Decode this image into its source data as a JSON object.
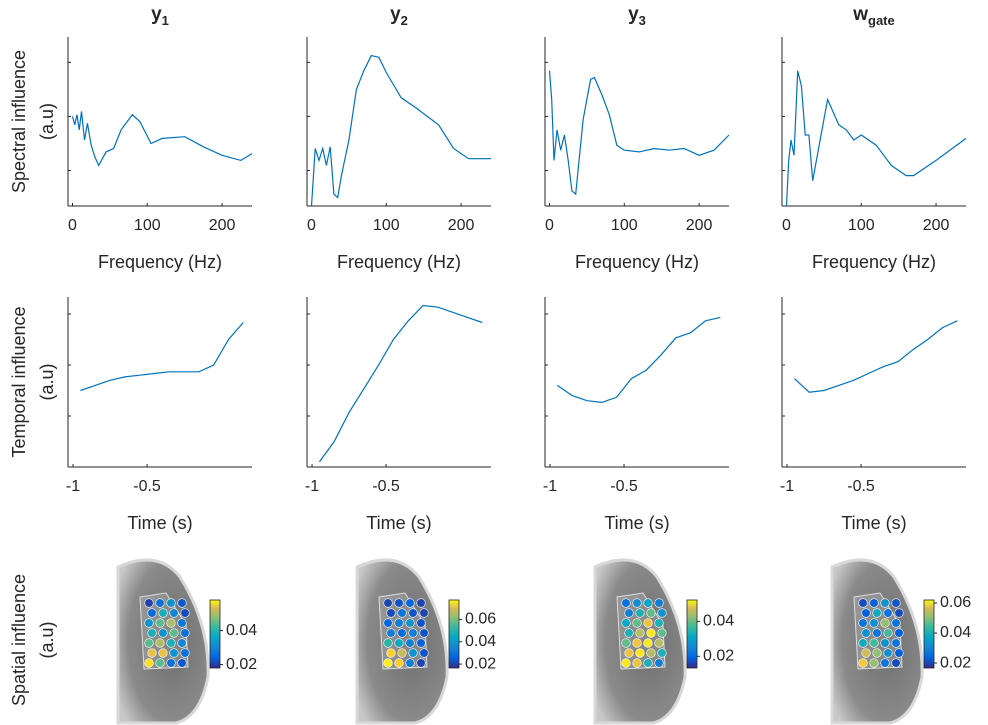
{
  "chart_data": [
    {
      "type": "line",
      "title": {
        "base": "y",
        "subscript": "1"
      },
      "ylabel": [
        "Spectral influence",
        "(a.u)"
      ],
      "xlabel": "Frequency (Hz)",
      "color": "#0072bd",
      "x": [
        0,
        3,
        6,
        9,
        12,
        16,
        20,
        25,
        30,
        35,
        45,
        55,
        65,
        80,
        90,
        105,
        120,
        150,
        175,
        200,
        225,
        240
      ],
      "values": [
        0.53,
        0.48,
        0.54,
        0.45,
        0.56,
        0.39,
        0.49,
        0.36,
        0.29,
        0.24,
        0.32,
        0.34,
        0.45,
        0.54,
        0.5,
        0.37,
        0.4,
        0.41,
        0.35,
        0.3,
        0.27,
        0.31
      ],
      "xlim": [
        -6,
        240
      ],
      "xticks": [
        0,
        100,
        200
      ],
      "ylim": [
        0,
        1
      ],
      "yticks": [
        0.21,
        0.53,
        0.85
      ]
    },
    {
      "type": "line",
      "title": {
        "base": "y",
        "subscript": "2"
      },
      "xlabel": "Frequency (Hz)",
      "color": "#0072bd",
      "x": [
        0,
        5,
        10,
        15,
        20,
        25,
        30,
        35,
        40,
        50,
        60,
        70,
        80,
        90,
        100,
        120,
        140,
        170,
        190,
        210,
        240
      ],
      "values": [
        0.0,
        0.34,
        0.27,
        0.34,
        0.24,
        0.35,
        0.07,
        0.05,
        0.18,
        0.39,
        0.69,
        0.8,
        0.89,
        0.88,
        0.79,
        0.64,
        0.58,
        0.48,
        0.34,
        0.28,
        0.28
      ],
      "xlim": [
        -6,
        240
      ],
      "xticks": [
        0,
        100,
        200
      ],
      "ylim": [
        0,
        1
      ],
      "yticks": [
        0.21,
        0.53,
        0.85
      ]
    },
    {
      "type": "line",
      "title": {
        "base": "y",
        "subscript": "3"
      },
      "xlabel": "Frequency (Hz)",
      "color": "#0072bd",
      "x": [
        0,
        3,
        6,
        10,
        15,
        20,
        25,
        30,
        35,
        45,
        55,
        60,
        70,
        80,
        90,
        100,
        120,
        140,
        160,
        180,
        200,
        220,
        240
      ],
      "values": [
        0.8,
        0.63,
        0.27,
        0.45,
        0.33,
        0.42,
        0.27,
        0.09,
        0.07,
        0.51,
        0.75,
        0.76,
        0.66,
        0.54,
        0.36,
        0.33,
        0.32,
        0.34,
        0.33,
        0.34,
        0.3,
        0.33,
        0.42
      ],
      "xlim": [
        -6,
        240
      ],
      "xticks": [
        0,
        100,
        200
      ],
      "ylim": [
        0,
        1
      ],
      "yticks": [
        0.21,
        0.53,
        0.85
      ]
    },
    {
      "type": "line",
      "title": {
        "base": "w",
        "subscript": "gate"
      },
      "xlabel": "Frequency (Hz)",
      "color": "#0072bd",
      "x": [
        0,
        3,
        6,
        10,
        15,
        20,
        25,
        30,
        35,
        45,
        55,
        70,
        80,
        90,
        100,
        120,
        140,
        160,
        170,
        180,
        200,
        240
      ],
      "values": [
        0.0,
        0.27,
        0.39,
        0.3,
        0.8,
        0.71,
        0.42,
        0.42,
        0.15,
        0.39,
        0.63,
        0.48,
        0.45,
        0.39,
        0.42,
        0.36,
        0.24,
        0.18,
        0.18,
        0.21,
        0.27,
        0.4
      ],
      "xlim": [
        -6,
        240
      ],
      "xticks": [
        0,
        100,
        200
      ],
      "ylim": [
        0,
        1
      ],
      "yticks": [
        0.21,
        0.53,
        0.85
      ]
    },
    {
      "type": "line",
      "ylabel": [
        "Temporal influence",
        "(a.u)"
      ],
      "xlabel": "Time (s)",
      "color": "#0072bd",
      "x": [
        -0.95,
        -0.85,
        -0.75,
        -0.65,
        -0.55,
        -0.45,
        -0.35,
        -0.25,
        -0.15,
        -0.05,
        0.05,
        0.15
      ],
      "values": [
        0.45,
        0.48,
        0.51,
        0.53,
        0.54,
        0.55,
        0.56,
        0.56,
        0.56,
        0.6,
        0.75,
        0.85
      ],
      "xlim": [
        -1.034,
        0.209
      ],
      "xticks": [
        -1,
        -0.5
      ],
      "ylim": [
        0,
        1
      ],
      "yticks": [
        0.3,
        0.6,
        0.9
      ]
    },
    {
      "type": "line",
      "xlabel": "Time (s)",
      "color": "#0072bd",
      "x": [
        -0.95,
        -0.85,
        -0.75,
        -0.65,
        -0.55,
        -0.45,
        -0.35,
        -0.25,
        -0.15,
        -0.05,
        0.05,
        0.15
      ],
      "values": [
        0.03,
        0.15,
        0.32,
        0.46,
        0.6,
        0.75,
        0.86,
        0.95,
        0.94,
        0.91,
        0.88,
        0.85
      ],
      "xlim": [
        -1.034,
        0.209
      ],
      "xticks": [
        -1,
        -0.5
      ],
      "ylim": [
        0,
        1
      ],
      "yticks": [
        0.3,
        0.6,
        0.9
      ]
    },
    {
      "type": "line",
      "xlabel": "Time (s)",
      "color": "#0072bd",
      "x": [
        -0.95,
        -0.85,
        -0.75,
        -0.65,
        -0.55,
        -0.45,
        -0.35,
        -0.25,
        -0.15,
        -0.05,
        0.05,
        0.15
      ],
      "values": [
        0.48,
        0.42,
        0.39,
        0.38,
        0.41,
        0.52,
        0.57,
        0.66,
        0.76,
        0.79,
        0.86,
        0.88
      ],
      "xlim": [
        -1.034,
        0.209
      ],
      "xticks": [
        -1,
        -0.5
      ],
      "ylim": [
        0,
        1
      ],
      "yticks": [
        0.3,
        0.6,
        0.9
      ]
    },
    {
      "type": "line",
      "xlabel": "Time (s)",
      "color": "#0072bd",
      "x": [
        -0.95,
        -0.85,
        -0.75,
        -0.65,
        -0.55,
        -0.45,
        -0.35,
        -0.25,
        -0.15,
        -0.05,
        0.05,
        0.15
      ],
      "values": [
        0.52,
        0.44,
        0.45,
        0.48,
        0.51,
        0.55,
        0.59,
        0.62,
        0.69,
        0.75,
        0.82,
        0.86
      ],
      "xlim": [
        -1.034,
        0.209
      ],
      "xticks": [
        -1,
        -0.5
      ],
      "ylim": [
        0,
        1
      ],
      "yticks": [
        0.3,
        0.6,
        0.9
      ]
    },
    {
      "type": "electrode_map",
      "ylabel": [
        "Spatial influence",
        "(a.u)"
      ],
      "values": [
        0.02,
        0.025,
        0.03,
        0.022,
        0.024,
        0.035,
        0.028,
        0.021,
        0.03,
        0.04,
        0.045,
        0.026,
        0.035,
        0.03,
        0.04,
        0.025,
        0.04,
        0.045,
        0.035,
        0.028,
        0.05,
        0.05,
        0.03,
        0.025,
        0.055,
        0.04,
        0.025,
        0.022
      ],
      "clim": [
        0.018,
        0.058
      ],
      "cticks": [
        0.02,
        0.04
      ]
    },
    {
      "type": "electrode_map",
      "values": [
        0.02,
        0.022,
        0.025,
        0.02,
        0.021,
        0.028,
        0.022,
        0.02,
        0.025,
        0.03,
        0.035,
        0.022,
        0.03,
        0.026,
        0.03,
        0.022,
        0.045,
        0.04,
        0.03,
        0.024,
        0.07,
        0.06,
        0.035,
        0.022,
        0.075,
        0.07,
        0.03,
        0.02
      ],
      "clim": [
        0.0165,
        0.0774
      ],
      "cticks": [
        0.02,
        0.04,
        0.06
      ]
    },
    {
      "type": "electrode_map",
      "values": [
        0.02,
        0.024,
        0.028,
        0.022,
        0.022,
        0.03,
        0.035,
        0.025,
        0.028,
        0.035,
        0.045,
        0.03,
        0.03,
        0.04,
        0.05,
        0.035,
        0.035,
        0.045,
        0.05,
        0.04,
        0.045,
        0.05,
        0.04,
        0.03,
        0.05,
        0.045,
        0.03,
        0.022
      ],
      "clim": [
        0.0133,
        0.0522
      ],
      "cticks": [
        0.02,
        0.04
      ]
    },
    {
      "type": "electrode_map",
      "values": [
        0.02,
        0.022,
        0.03,
        0.021,
        0.022,
        0.035,
        0.025,
        0.02,
        0.025,
        0.03,
        0.045,
        0.025,
        0.03,
        0.025,
        0.04,
        0.022,
        0.035,
        0.04,
        0.03,
        0.025,
        0.05,
        0.045,
        0.03,
        0.022,
        0.055,
        0.045,
        0.025,
        0.02
      ],
      "clim": [
        0.0167,
        0.062
      ],
      "cticks": [
        0.02,
        0.04,
        0.06
      ]
    }
  ]
}
